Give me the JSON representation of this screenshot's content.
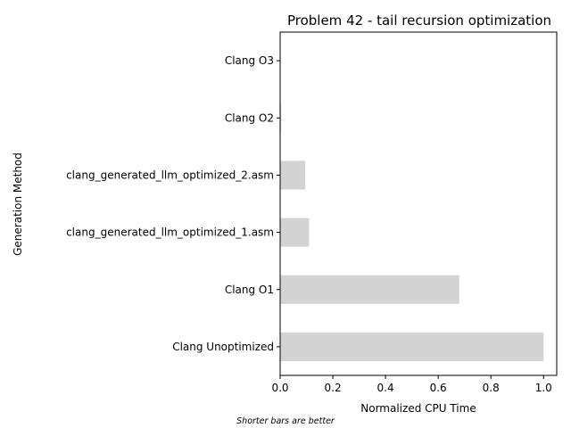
{
  "chart_data": {
    "type": "bar",
    "orientation": "horizontal",
    "title": "Problem 42 - tail recursion optimization",
    "xlabel": "Normalized CPU Time",
    "ylabel": "Generation Method",
    "categories": [
      "Clang Unoptimized",
      "Clang O1",
      "clang_generated_llm_optimized_1.asm",
      "clang_generated_llm_optimized_2.asm",
      "Clang O2",
      "Clang O3"
    ],
    "values": [
      1.0,
      0.68,
      0.11,
      0.095,
      0.004,
      0.002
    ],
    "xlim": [
      0,
      1.05
    ],
    "xticks": [
      "0.0",
      "0.2",
      "0.4",
      "0.6",
      "0.8",
      "1.0"
    ],
    "grid": false,
    "bar_color": "#d3d3d3",
    "footnote": "Shorter bars are better"
  }
}
